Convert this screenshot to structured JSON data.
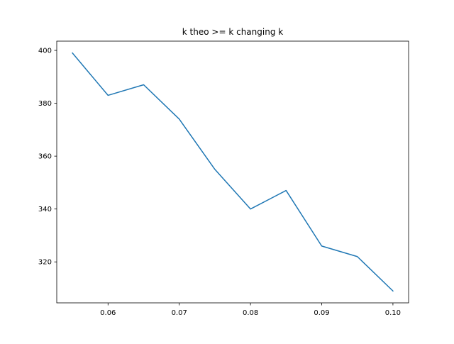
{
  "chart_data": {
    "type": "line",
    "title": "k theo >= k changing k",
    "xlabel": "",
    "ylabel": "",
    "xlim": [
      0.0528,
      0.1022
    ],
    "ylim": [
      304.5,
      403.5
    ],
    "xticks": [
      0.06,
      0.07,
      0.08,
      0.09,
      0.1
    ],
    "xtick_labels": [
      "0.06",
      "0.07",
      "0.08",
      "0.09",
      "0.10"
    ],
    "yticks": [
      320,
      340,
      360,
      380,
      400
    ],
    "ytick_labels": [
      "320",
      "340",
      "360",
      "380",
      "400"
    ],
    "grid": false,
    "series": [
      {
        "color": "#1f77b4",
        "x": [
          0.055,
          0.06,
          0.065,
          0.07,
          0.075,
          0.08,
          0.085,
          0.09,
          0.095,
          0.1
        ],
        "y": [
          399,
          383,
          387,
          374,
          355,
          340,
          347,
          326,
          322,
          309
        ]
      }
    ]
  }
}
